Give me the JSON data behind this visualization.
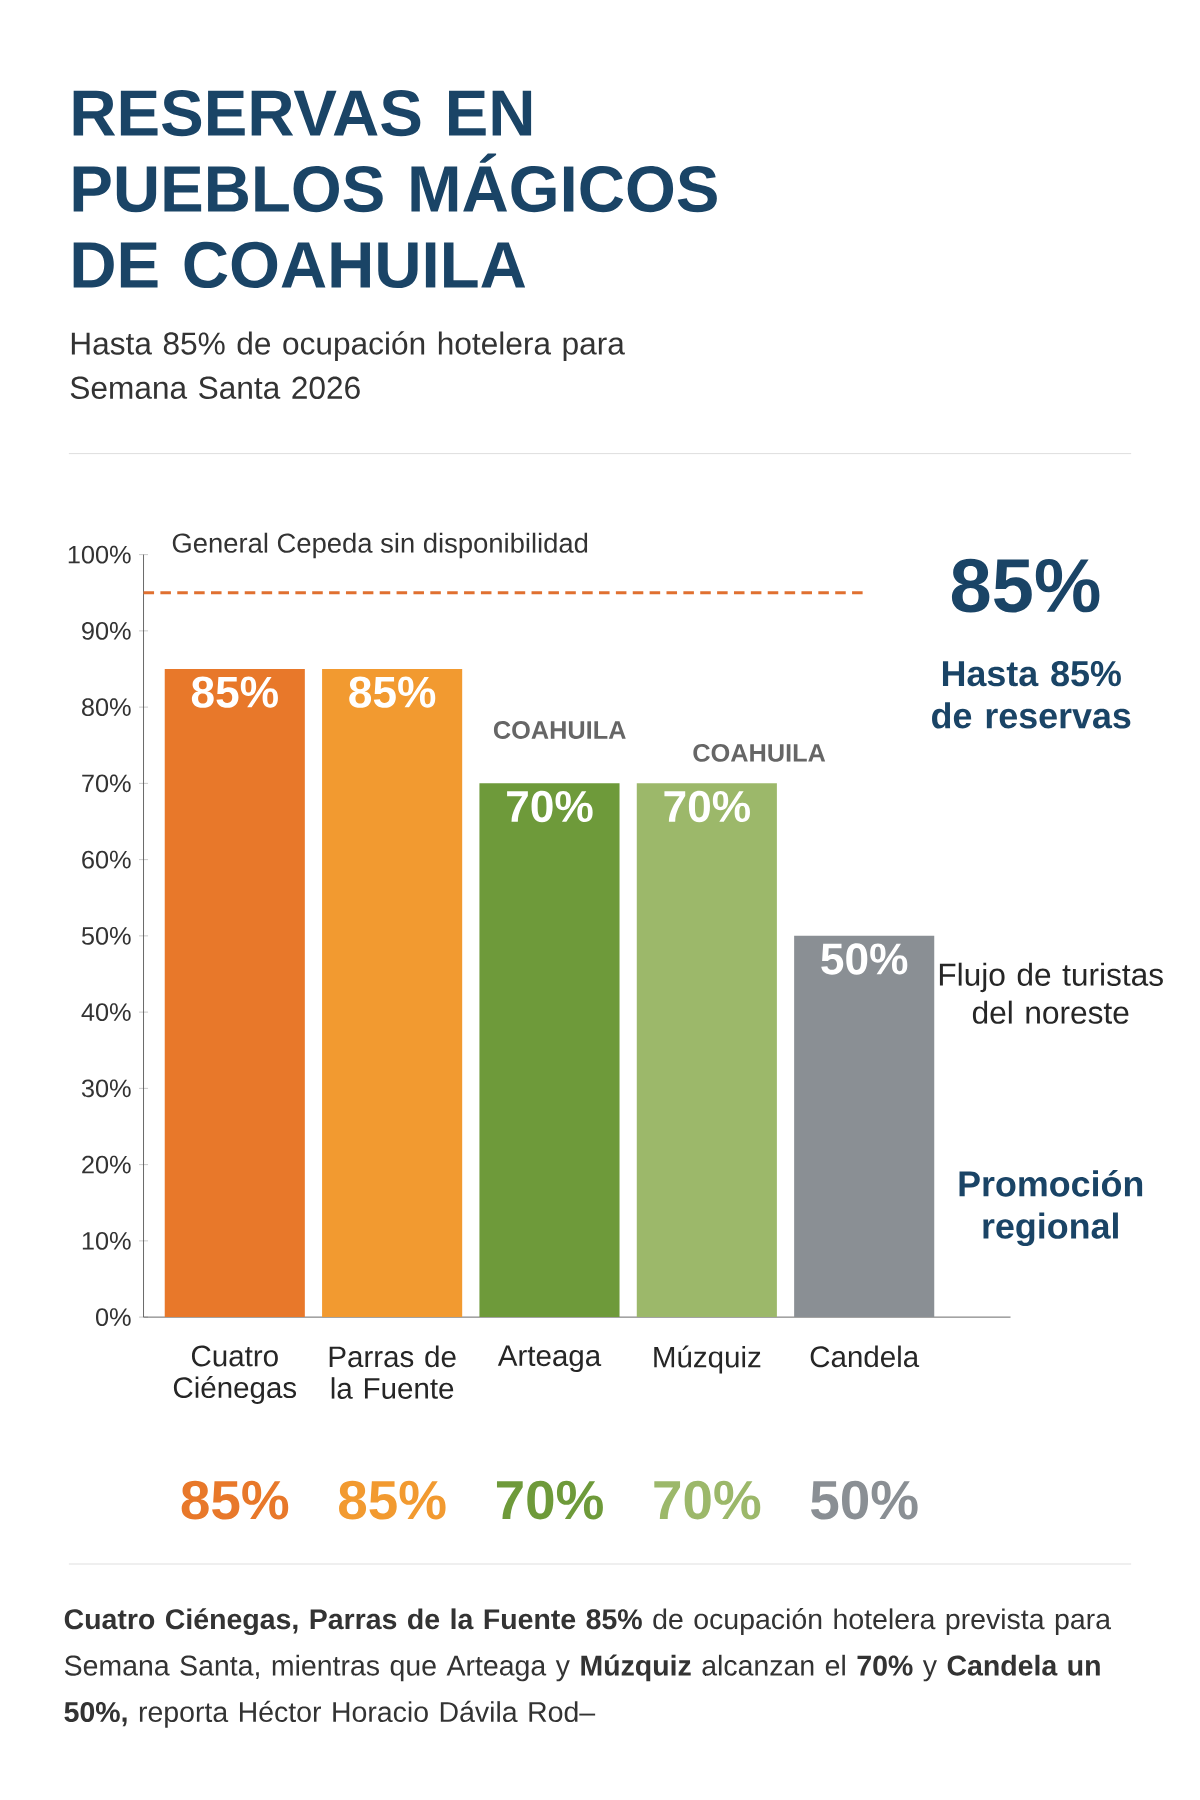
{
  "chart_data": {
    "type": "bar",
    "title": "RESERVAS EN PUEBLOS MÁGICOS DE COAHUILA",
    "subtitle": "Hasta 85% de ocupación hotelera para Semana Santa 2026",
    "categories": [
      "Cuatro Ciénegas",
      "Parras de la Fuente",
      "Arteaga",
      "Múzquiz",
      "Candela"
    ],
    "values": [
      85,
      85,
      70,
      70,
      50
    ],
    "colors": [
      "#e8782a",
      "#f29a30",
      "#6e9a3a",
      "#9cb86a",
      "#8a8f94"
    ],
    "value_labels": [
      "85%",
      "85%",
      "70%",
      "70%",
      "50%"
    ],
    "ylim": [
      0,
      100
    ],
    "yticks": [
      {
        "value": 0,
        "label": "0%"
      },
      {
        "value": 10,
        "label": "10%"
      },
      {
        "value": 20,
        "label": "20%"
      },
      {
        "value": 30,
        "label": "30%"
      },
      {
        "value": 40,
        "label": "40%"
      },
      {
        "value": 50,
        "label": "50%"
      },
      {
        "value": 60,
        "label": "60%"
      },
      {
        "value": 70,
        "label": "70%"
      },
      {
        "value": 80,
        "label": "80%"
      },
      {
        "value": 90,
        "label": "90%"
      },
      {
        "value": 100,
        "label": "100%"
      }
    ],
    "ref_lines": [
      {
        "axis": "y",
        "value": 95,
        "label": "General Cepeda sin disponibilidad",
        "color": "#e07030",
        "line_style": "dashed"
      }
    ],
    "annotations": [
      "85%",
      "Hasta 85% de reservas",
      "Flujo de turistas del noreste",
      "Promoción regional",
      "COAHUILA",
      "COAHUILA",
      "**Cuatro Ciénegas, Parras de la Fuente 85%** de ocupación hotelera prevista para Semana Santa, mientras que Arteaga y **Múzquiz** alcanzan el **70%** y **Candela un 50%,** reporta Héctor Horacio Dávila Rod–"
    ]
  }
}
